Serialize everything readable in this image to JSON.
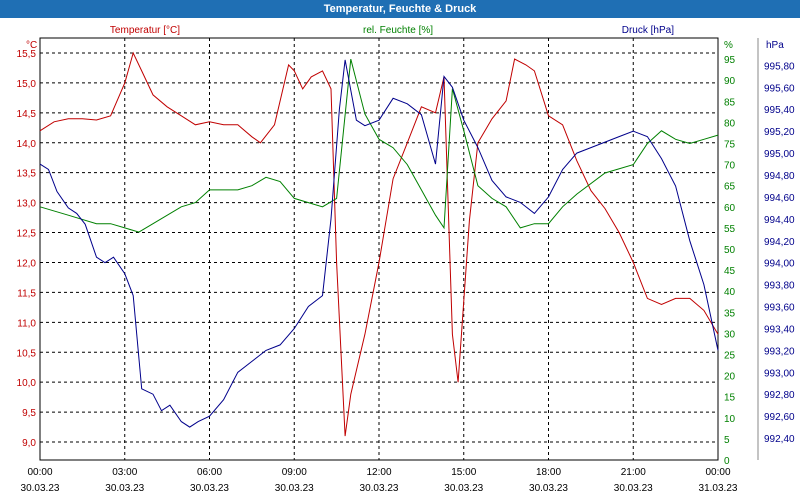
{
  "window": {
    "title": "Temperatur, Feuchte & Druck"
  },
  "chart_data": {
    "type": "line",
    "title": "Temperatur, Feuchte & Druck",
    "grid": true,
    "x_ticks": [
      {
        "time": "00:00",
        "date": "30.03.23"
      },
      {
        "time": "03:00",
        "date": "30.03.23"
      },
      {
        "time": "06:00",
        "date": "30.03.23"
      },
      {
        "time": "09:00",
        "date": "30.03.23"
      },
      {
        "time": "12:00",
        "date": "30.03.23"
      },
      {
        "time": "15:00",
        "date": "30.03.23"
      },
      {
        "time": "18:00",
        "date": "30.03.23"
      },
      {
        "time": "21:00",
        "date": "30.03.23"
      },
      {
        "time": "00:00",
        "date": "31.03.23"
      }
    ],
    "xlim": [
      0,
      24
    ],
    "axes": {
      "temperature": {
        "unit": "°C",
        "min": 8.7,
        "max": 15.75,
        "ticks": [
          "15,5",
          "15,0",
          "14,5",
          "14,0",
          "13,5",
          "13,0",
          "12,5",
          "12,0",
          "11,5",
          "11,0",
          "10,5",
          "10,0",
          "9,5",
          "9,0"
        ],
        "color": "#c00000"
      },
      "humidity": {
        "unit": "%",
        "min": 0,
        "max": 100,
        "ticks": [
          "95",
          "90",
          "85",
          "80",
          "75",
          "70",
          "65",
          "60",
          "55",
          "50",
          "45",
          "40",
          "35",
          "30",
          "25",
          "20",
          "15",
          "10",
          "5",
          "0"
        ],
        "color": "#008000"
      },
      "pressure": {
        "unit": "hPa",
        "min": 992.2,
        "max": 996.05,
        "ticks": [
          "995,80",
          "995,60",
          "995,40",
          "995,20",
          "995,00",
          "994,80",
          "994,60",
          "994,40",
          "994,20",
          "994,00",
          "993,80",
          "993,60",
          "993,40",
          "993,20",
          "993,00",
          "992,80",
          "992,60",
          "992,40"
        ],
        "color": "#00008b"
      }
    },
    "series": [
      {
        "name": "Temperatur [°C]",
        "axis": "temperature",
        "color": "#c00000",
        "points": [
          [
            0,
            14.2
          ],
          [
            0.5,
            14.35
          ],
          [
            1,
            14.4
          ],
          [
            1.5,
            14.4
          ],
          [
            2,
            14.38
          ],
          [
            2.5,
            14.45
          ],
          [
            3,
            15.0
          ],
          [
            3.3,
            15.5
          ],
          [
            3.6,
            15.2
          ],
          [
            4,
            14.8
          ],
          [
            4.5,
            14.6
          ],
          [
            5,
            14.45
          ],
          [
            5.5,
            14.3
          ],
          [
            6,
            14.35
          ],
          [
            6.5,
            14.3
          ],
          [
            7,
            14.3
          ],
          [
            7.5,
            14.1
          ],
          [
            7.8,
            14.0
          ],
          [
            8.3,
            14.3
          ],
          [
            8.8,
            15.3
          ],
          [
            9,
            15.2
          ],
          [
            9.3,
            14.9
          ],
          [
            9.6,
            15.1
          ],
          [
            10,
            15.2
          ],
          [
            10.3,
            14.9
          ],
          [
            10.5,
            12.0
          ],
          [
            10.8,
            9.1
          ],
          [
            11,
            9.8
          ],
          [
            11.5,
            10.8
          ],
          [
            12,
            12.0
          ],
          [
            12.5,
            13.4
          ],
          [
            13,
            14.0
          ],
          [
            13.5,
            14.6
          ],
          [
            14,
            14.5
          ],
          [
            14.3,
            15.1
          ],
          [
            14.6,
            10.8
          ],
          [
            14.8,
            10.0
          ],
          [
            15.2,
            12.7
          ],
          [
            15.5,
            14.0
          ],
          [
            16,
            14.4
          ],
          [
            16.5,
            14.7
          ],
          [
            16.8,
            15.4
          ],
          [
            17.2,
            15.3
          ],
          [
            17.5,
            15.2
          ],
          [
            18,
            14.45
          ],
          [
            18.5,
            14.3
          ],
          [
            19,
            13.7
          ],
          [
            19.5,
            13.2
          ],
          [
            20,
            12.9
          ],
          [
            20.5,
            12.5
          ],
          [
            21,
            12.0
          ],
          [
            21.5,
            11.4
          ],
          [
            22,
            11.3
          ],
          [
            22.5,
            11.4
          ],
          [
            23,
            11.4
          ],
          [
            23.5,
            11.2
          ],
          [
            24,
            10.8
          ]
        ]
      },
      {
        "name": "rel. Feuchte [%]",
        "axis": "humidity",
        "color": "#008000",
        "points": [
          [
            0,
            60
          ],
          [
            1,
            58
          ],
          [
            2,
            56
          ],
          [
            2.5,
            56
          ],
          [
            3,
            55
          ],
          [
            3.5,
            54
          ],
          [
            4,
            56
          ],
          [
            5,
            60
          ],
          [
            5.5,
            61
          ],
          [
            6,
            64
          ],
          [
            6.5,
            64
          ],
          [
            7,
            64
          ],
          [
            7.5,
            65
          ],
          [
            8,
            67
          ],
          [
            8.5,
            66
          ],
          [
            9,
            62
          ],
          [
            9.5,
            61
          ],
          [
            10,
            60
          ],
          [
            10.5,
            62
          ],
          [
            11,
            95
          ],
          [
            11.5,
            82
          ],
          [
            12,
            76
          ],
          [
            12.5,
            74
          ],
          [
            13,
            70
          ],
          [
            13.5,
            64
          ],
          [
            14,
            58
          ],
          [
            14.3,
            55
          ],
          [
            14.6,
            88
          ],
          [
            15,
            78
          ],
          [
            15.5,
            65
          ],
          [
            16,
            62
          ],
          [
            16.5,
            60
          ],
          [
            17,
            55
          ],
          [
            17.5,
            56
          ],
          [
            18,
            56
          ],
          [
            18.5,
            60
          ],
          [
            19,
            63
          ],
          [
            20,
            68
          ],
          [
            21,
            70
          ],
          [
            21.5,
            75
          ],
          [
            22,
            78
          ],
          [
            22.5,
            76
          ],
          [
            23,
            75
          ],
          [
            23.5,
            76
          ],
          [
            24,
            77
          ]
        ]
      },
      {
        "name": "Druck [hPa]",
        "axis": "pressure",
        "color": "#00008b",
        "points": [
          [
            0,
            994.9
          ],
          [
            0.3,
            994.85
          ],
          [
            0.6,
            994.65
          ],
          [
            1,
            994.5
          ],
          [
            1.3,
            994.45
          ],
          [
            1.6,
            994.35
          ],
          [
            2,
            994.05
          ],
          [
            2.3,
            994.0
          ],
          [
            2.6,
            994.05
          ],
          [
            3,
            993.9
          ],
          [
            3.3,
            993.7
          ],
          [
            3.6,
            992.85
          ],
          [
            4,
            992.8
          ],
          [
            4.3,
            992.65
          ],
          [
            4.6,
            992.7
          ],
          [
            5,
            992.55
          ],
          [
            5.3,
            992.5
          ],
          [
            5.6,
            992.55
          ],
          [
            6,
            992.6
          ],
          [
            6.5,
            992.75
          ],
          [
            7,
            993.0
          ],
          [
            7.5,
            993.1
          ],
          [
            8,
            993.2
          ],
          [
            8.5,
            993.25
          ],
          [
            9,
            993.4
          ],
          [
            9.5,
            993.6
          ],
          [
            10,
            993.7
          ],
          [
            10.3,
            994.4
          ],
          [
            10.6,
            995.4
          ],
          [
            10.8,
            995.85
          ],
          [
            11.2,
            995.3
          ],
          [
            11.5,
            995.25
          ],
          [
            12,
            995.3
          ],
          [
            12.5,
            995.5
          ],
          [
            13,
            995.45
          ],
          [
            13.5,
            995.35
          ],
          [
            14,
            994.9
          ],
          [
            14.3,
            995.7
          ],
          [
            14.6,
            995.6
          ],
          [
            15,
            995.3
          ],
          [
            15.5,
            995.05
          ],
          [
            16,
            994.75
          ],
          [
            16.5,
            994.6
          ],
          [
            17,
            994.55
          ],
          [
            17.5,
            994.45
          ],
          [
            18,
            994.6
          ],
          [
            18.5,
            994.85
          ],
          [
            19,
            995.0
          ],
          [
            19.5,
            995.05
          ],
          [
            20,
            995.1
          ],
          [
            20.5,
            995.15
          ],
          [
            21,
            995.2
          ],
          [
            21.5,
            995.15
          ],
          [
            22,
            994.95
          ],
          [
            22.5,
            994.7
          ],
          [
            23,
            994.2
          ],
          [
            23.5,
            993.8
          ],
          [
            24,
            993.2
          ]
        ]
      }
    ]
  }
}
